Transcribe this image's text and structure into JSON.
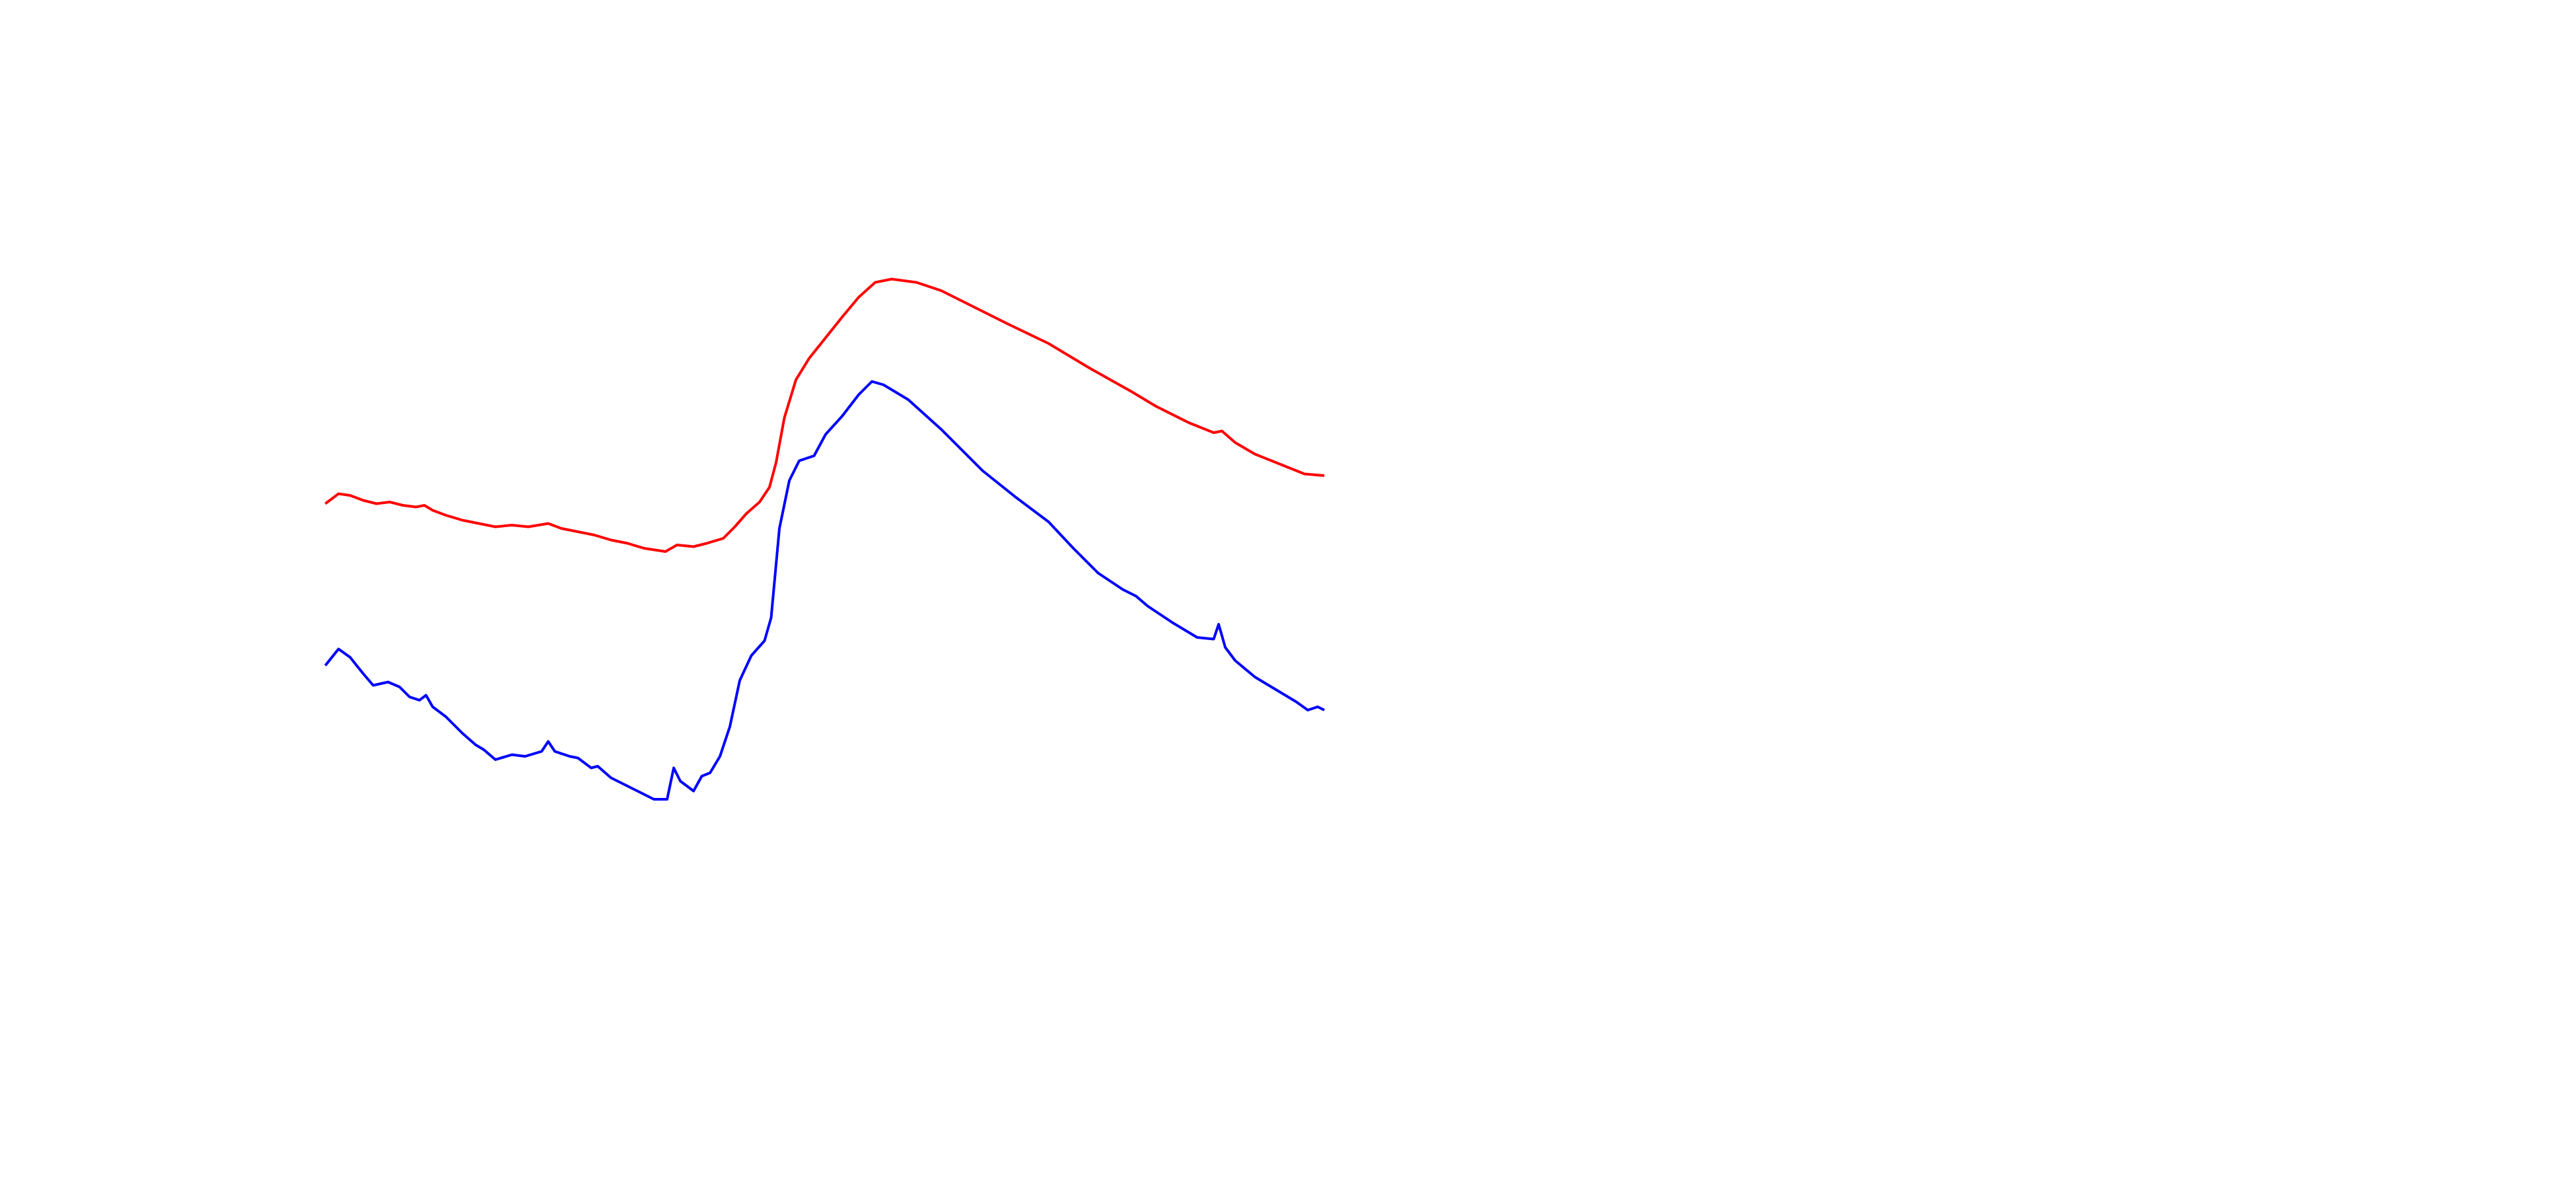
{
  "chart_data": {
    "type": "line",
    "xlim": [
      0,
      1560
    ],
    "ylim": [
      720,
      0
    ],
    "series": [
      {
        "color": "#ff0000",
        "x": [
          197,
          205,
          212,
          220,
          228,
          236,
          244,
          252,
          257,
          262,
          270,
          280,
          290,
          300,
          310,
          320,
          332,
          340,
          350,
          360,
          370,
          380,
          390,
          403,
          410,
          420,
          428,
          438,
          445,
          452,
          460,
          466,
          470,
          475,
          482,
          490,
          498,
          510,
          520,
          530,
          540,
          555,
          570,
          590,
          610,
          635,
          660,
          685,
          700,
          720,
          735,
          740,
          748,
          760,
          775,
          790,
          802
        ],
        "values": [
          305,
          299,
          300,
          303,
          305,
          304,
          306,
          307,
          306,
          309,
          312,
          315,
          317,
          319,
          318,
          319,
          317,
          320,
          322,
          324,
          327,
          329,
          332,
          334,
          330,
          331,
          329,
          326,
          319,
          311,
          304,
          295,
          280,
          253,
          230,
          217,
          207,
          192,
          180,
          171,
          169,
          171,
          176,
          186,
          196,
          208,
          223,
          237,
          246,
          256,
          262,
          261,
          268,
          275,
          281,
          287,
          288
        ]
      },
      {
        "color": "#0000ff",
        "x": [
          197,
          205,
          212,
          220,
          226,
          235,
          242,
          248,
          254,
          258,
          262,
          270,
          280,
          288,
          293,
          300,
          310,
          318,
          328,
          332,
          336,
          345,
          350,
          358,
          362,
          370,
          380,
          390,
          396,
          404,
          408,
          412,
          420,
          425,
          430,
          436,
          442,
          448,
          455,
          463,
          467,
          472,
          478,
          484,
          493,
          500,
          510,
          520,
          528,
          535,
          550,
          570,
          595,
          615,
          635,
          650,
          665,
          680,
          688,
          695,
          710,
          725,
          735,
          738,
          742,
          748,
          760,
          775,
          785,
          792,
          798,
          802
        ],
        "values": [
          403,
          393,
          398,
          408,
          415,
          413,
          416,
          422,
          424,
          421,
          428,
          434,
          444,
          451,
          454,
          460,
          457,
          458,
          455,
          449,
          455,
          458,
          459,
          465,
          464,
          471,
          476,
          481,
          484,
          484,
          465,
          473,
          479,
          470,
          468,
          458,
          440,
          412,
          397,
          388,
          374,
          320,
          291,
          279,
          276,
          263,
          252,
          239,
          231,
          233,
          242,
          260,
          285,
          301,
          316,
          332,
          347,
          357,
          361,
          367,
          377,
          386,
          387,
          378,
          392,
          400,
          410,
          419,
          425,
          430,
          428,
          430
        ]
      }
    ]
  }
}
